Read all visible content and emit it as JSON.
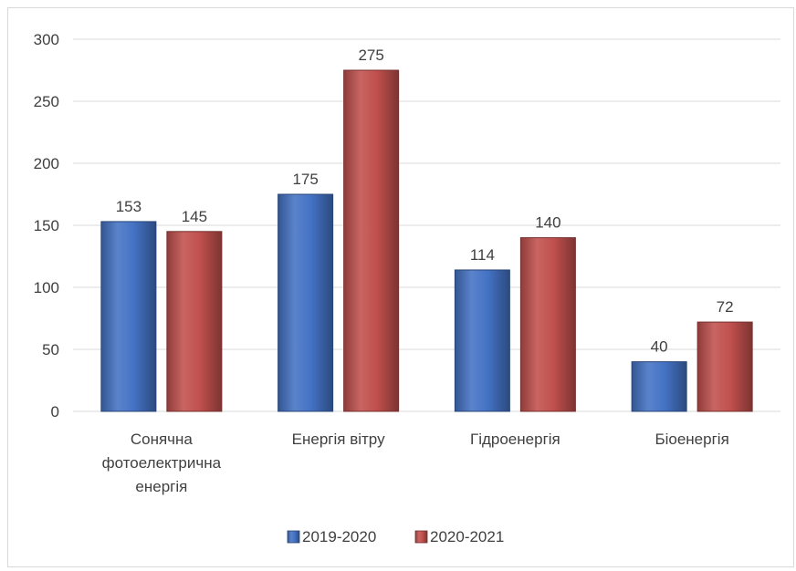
{
  "chart_data": {
    "type": "bar",
    "title": "",
    "xlabel": "",
    "ylabel": "",
    "categories": [
      [
        "Сонячна",
        "фотоелектрична",
        "енергія"
      ],
      [
        "Енергія вітру"
      ],
      [
        "Гідроенергія"
      ],
      [
        "Біоенергія"
      ]
    ],
    "series": [
      {
        "name": "2019-2020",
        "values": [
          153,
          175,
          114,
          40
        ],
        "color": "#4472c4"
      },
      {
        "name": "2020-2021",
        "values": [
          145,
          275,
          140,
          72
        ],
        "color": "#c0504d"
      }
    ],
    "ylim": [
      0,
      300
    ],
    "yticks": [
      0,
      50,
      100,
      150,
      200,
      250,
      300
    ],
    "grid": true,
    "legend": "bottom",
    "data_labels": true
  }
}
